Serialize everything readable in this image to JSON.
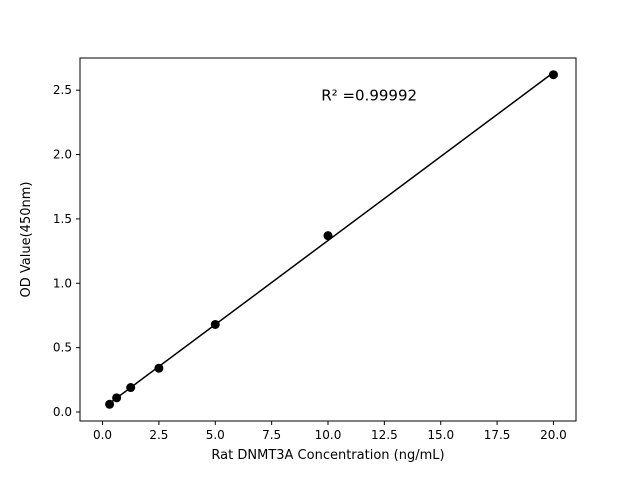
{
  "chart_data": {
    "type": "scatter",
    "title": "",
    "xlabel": "Rat DNMT3A Concentration (ng/mL)",
    "ylabel": "OD Value(450nm)",
    "x": [
      0.3125,
      0.625,
      1.25,
      2.5,
      5,
      10,
      20
    ],
    "y": [
      0.06,
      0.11,
      0.19,
      0.34,
      0.68,
      1.37,
      2.62
    ],
    "xlim": [
      -1,
      21
    ],
    "ylim": [
      -0.07,
      2.75
    ],
    "xticks": [
      0.0,
      2.5,
      5.0,
      7.5,
      10.0,
      12.5,
      15.0,
      17.5,
      20.0
    ],
    "yticks": [
      0.0,
      0.5,
      1.0,
      1.5,
      2.0,
      2.5
    ],
    "grid": false,
    "legend": false,
    "fit": "linear",
    "line_color": "#000000",
    "marker_color": "#000000",
    "annotation": {
      "text": "R² =0.99992",
      "x": 9.7,
      "y": 2.42
    }
  }
}
